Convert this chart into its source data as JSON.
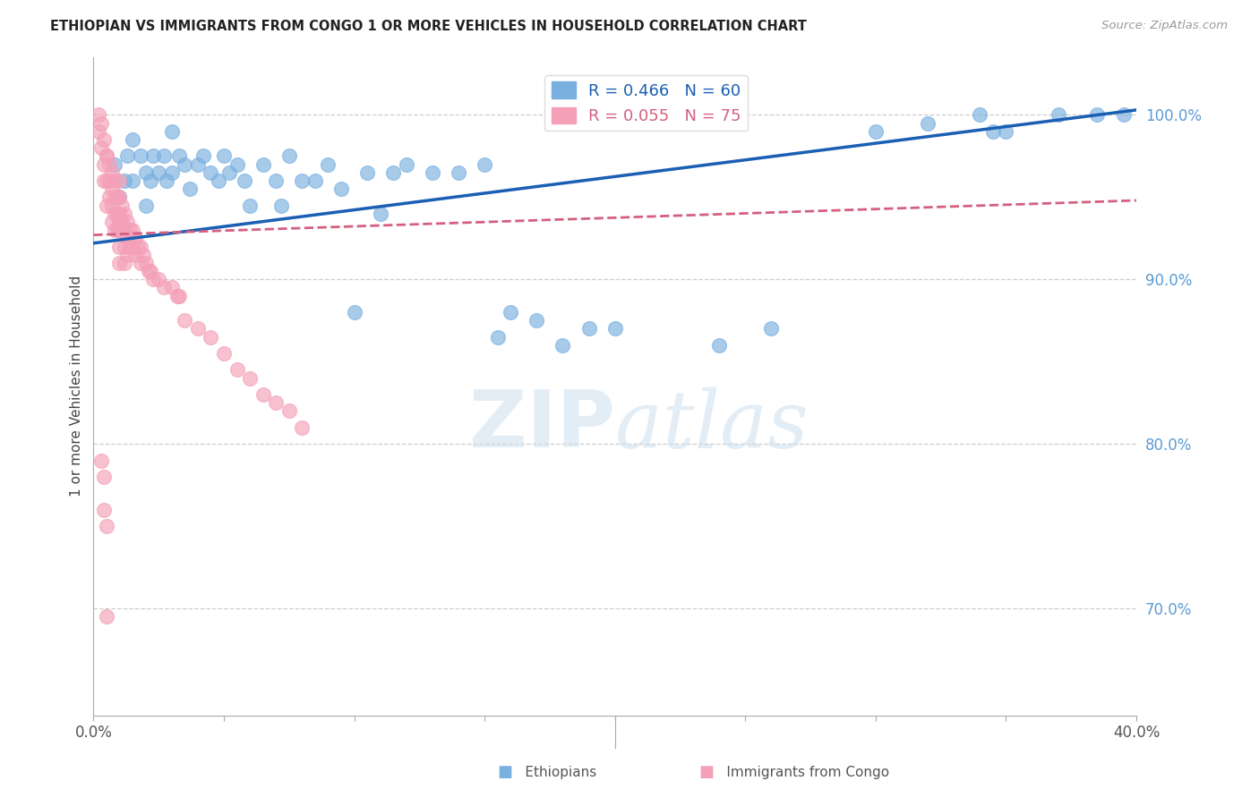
{
  "title": "ETHIOPIAN VS IMMIGRANTS FROM CONGO 1 OR MORE VEHICLES IN HOUSEHOLD CORRELATION CHART",
  "source": "Source: ZipAtlas.com",
  "ylabel": "1 or more Vehicles in Household",
  "xmin": 0.0,
  "xmax": 0.4,
  "ymin": 0.635,
  "ymax": 1.035,
  "yticks": [
    0.7,
    0.8,
    0.9,
    1.0
  ],
  "xticks": [
    0.0,
    0.05,
    0.1,
    0.15,
    0.2,
    0.25,
    0.3,
    0.35,
    0.4
  ],
  "ytick_labels": [
    "70.0%",
    "80.0%",
    "90.0%",
    "100.0%"
  ],
  "blue_R": 0.466,
  "blue_N": 60,
  "pink_R": 0.055,
  "pink_N": 75,
  "blue_color": "#7ab0e0",
  "pink_color": "#f4a0b8",
  "blue_line_color": "#1a5fb4",
  "pink_line_color": "#d46080",
  "legend_blue_label": "Ethiopians",
  "legend_pink_label": "Immigrants from Congo",
  "watermark_zip": "ZIP",
  "watermark_atlas": "atlas",
  "blue_line_x": [
    0.0,
    0.4
  ],
  "blue_line_y": [
    0.922,
    1.003
  ],
  "pink_line_x": [
    0.0,
    0.4
  ],
  "pink_line_y": [
    0.927,
    0.948
  ],
  "blue_scatter_x": [
    0.008,
    0.01,
    0.012,
    0.013,
    0.015,
    0.015,
    0.018,
    0.02,
    0.02,
    0.022,
    0.023,
    0.025,
    0.027,
    0.028,
    0.03,
    0.03,
    0.033,
    0.035,
    0.037,
    0.04,
    0.042,
    0.045,
    0.048,
    0.05,
    0.052,
    0.055,
    0.058,
    0.06,
    0.065,
    0.07,
    0.072,
    0.075,
    0.08,
    0.085,
    0.09,
    0.095,
    0.1,
    0.105,
    0.11,
    0.115,
    0.12,
    0.13,
    0.14,
    0.15,
    0.155,
    0.16,
    0.17,
    0.18,
    0.19,
    0.2,
    0.24,
    0.26,
    0.3,
    0.32,
    0.34,
    0.345,
    0.35,
    0.37,
    0.385,
    0.395
  ],
  "blue_scatter_y": [
    0.97,
    0.95,
    0.96,
    0.975,
    0.985,
    0.96,
    0.975,
    0.965,
    0.945,
    0.96,
    0.975,
    0.965,
    0.975,
    0.96,
    0.99,
    0.965,
    0.975,
    0.97,
    0.955,
    0.97,
    0.975,
    0.965,
    0.96,
    0.975,
    0.965,
    0.97,
    0.96,
    0.945,
    0.97,
    0.96,
    0.945,
    0.975,
    0.96,
    0.96,
    0.97,
    0.955,
    0.88,
    0.965,
    0.94,
    0.965,
    0.97,
    0.965,
    0.965,
    0.97,
    0.865,
    0.88,
    0.875,
    0.86,
    0.87,
    0.87,
    0.86,
    0.87,
    0.99,
    0.995,
    1.0,
    0.99,
    0.99,
    1.0,
    1.0,
    1.0
  ],
  "pink_scatter_x": [
    0.002,
    0.002,
    0.003,
    0.003,
    0.004,
    0.004,
    0.004,
    0.005,
    0.005,
    0.005,
    0.005,
    0.006,
    0.006,
    0.006,
    0.007,
    0.007,
    0.007,
    0.007,
    0.008,
    0.008,
    0.008,
    0.008,
    0.009,
    0.009,
    0.009,
    0.01,
    0.01,
    0.01,
    0.01,
    0.01,
    0.01,
    0.01,
    0.011,
    0.011,
    0.012,
    0.012,
    0.012,
    0.012,
    0.013,
    0.013,
    0.013,
    0.014,
    0.014,
    0.015,
    0.015,
    0.016,
    0.016,
    0.017,
    0.018,
    0.018,
    0.019,
    0.02,
    0.021,
    0.022,
    0.023,
    0.025,
    0.027,
    0.03,
    0.032,
    0.033,
    0.035,
    0.04,
    0.045,
    0.05,
    0.055,
    0.06,
    0.065,
    0.07,
    0.075,
    0.08,
    0.003,
    0.004,
    0.004,
    0.005,
    0.005
  ],
  "pink_scatter_y": [
    1.0,
    0.99,
    0.995,
    0.98,
    0.985,
    0.97,
    0.96,
    0.975,
    0.96,
    0.945,
    0.975,
    0.97,
    0.96,
    0.95,
    0.965,
    0.955,
    0.945,
    0.935,
    0.96,
    0.95,
    0.94,
    0.93,
    0.95,
    0.94,
    0.93,
    0.96,
    0.95,
    0.94,
    0.93,
    0.92,
    0.91,
    0.935,
    0.945,
    0.935,
    0.94,
    0.93,
    0.92,
    0.91,
    0.935,
    0.925,
    0.915,
    0.93,
    0.92,
    0.93,
    0.92,
    0.925,
    0.915,
    0.92,
    0.92,
    0.91,
    0.915,
    0.91,
    0.905,
    0.905,
    0.9,
    0.9,
    0.895,
    0.895,
    0.89,
    0.89,
    0.875,
    0.87,
    0.865,
    0.855,
    0.845,
    0.84,
    0.83,
    0.825,
    0.82,
    0.81,
    0.79,
    0.78,
    0.76,
    0.75,
    0.695
  ]
}
